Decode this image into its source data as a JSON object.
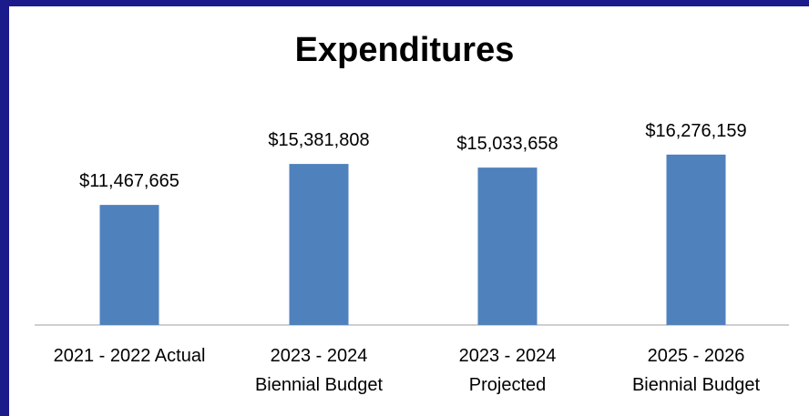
{
  "colors": {
    "border": "#1b1b8c",
    "background": "#ffffff",
    "bar": "#4f81bd",
    "axis": "#bfbfbf",
    "text": "#000000"
  },
  "chart_data": {
    "type": "bar",
    "title": "Expenditures",
    "categories": [
      [
        "2021 - 2022 Actual"
      ],
      [
        "2023 - 2024",
        "Biennial Budget"
      ],
      [
        "2023 - 2024",
        "Projected"
      ],
      [
        "2025 - 2026",
        "Biennial Budget"
      ]
    ],
    "values": [
      11467665,
      15381808,
      15033658,
      16276159
    ],
    "data_labels": [
      "$11,467,665",
      "$15,381,808",
      "$15,033,658",
      "$16,276,159"
    ],
    "ylim": [
      0,
      18000000
    ],
    "grid": false,
    "legend": "none"
  }
}
